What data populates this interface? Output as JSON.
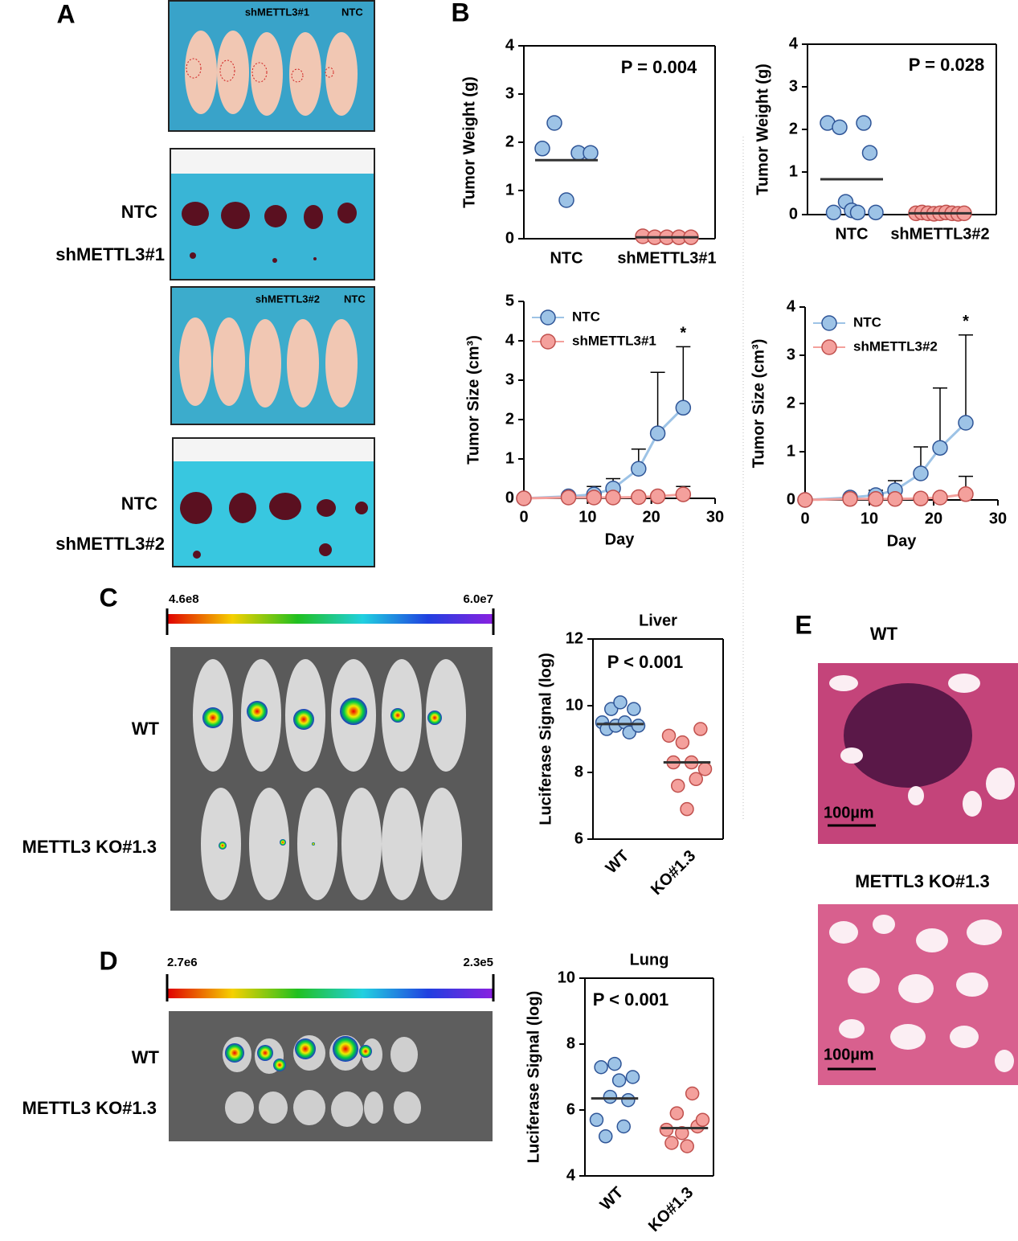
{
  "figure": {
    "panel_labels": [
      "A",
      "B",
      "C",
      "D",
      "E"
    ],
    "a": {
      "legend_1": [
        "shMETTL3#1",
        "NTC"
      ],
      "rows_1": [
        "NTC",
        "shMETTL3#1"
      ],
      "legend_2": [
        "shMETTL3#2",
        "NTC"
      ],
      "rows_2": [
        "NTC",
        "shMETTL3#2"
      ]
    },
    "c": {
      "scale": [
        "4.6e8",
        "6.0e7"
      ],
      "rows": [
        "WT",
        "METTL3 KO#1.3"
      ]
    },
    "d": {
      "scale": [
        "2.7e6",
        "2.3e5"
      ],
      "rows": [
        "WT",
        "METTL3 KO#1.3"
      ]
    },
    "e": {
      "titles": [
        "WT",
        "METTL3 KO#1.3"
      ],
      "scale_bars": [
        "100µm",
        "100µm"
      ]
    }
  },
  "chart_data": [
    {
      "type": "strip",
      "ylabel": "Tumor Weight (g)",
      "annotation": "P = 0.004",
      "categories": [
        "NTC",
        "shMETTL3#1"
      ],
      "colors": [
        "#9dc3e6",
        "#f4a09c"
      ],
      "points": [
        [
          1.87,
          2.4,
          0.8,
          1.78,
          1.78
        ],
        [
          0.05,
          0.03,
          0.03,
          0.03,
          0.03
        ]
      ],
      "means": [
        1.63,
        0.03
      ],
      "ylim": [
        0,
        4
      ],
      "yticks": [
        0,
        1,
        2,
        3,
        4
      ]
    },
    {
      "type": "strip",
      "ylabel": "Tumor Weight (g)",
      "annotation": "P = 0.028",
      "categories": [
        "NTC",
        "shMETTL3#2"
      ],
      "colors": [
        "#9dc3e6",
        "#f4a09c"
      ],
      "points": [
        [
          2.15,
          0.05,
          2.05,
          0.3,
          0.1,
          0.05,
          2.15,
          1.45,
          0.05
        ],
        [
          0.03,
          0.05,
          0.03,
          0.02,
          0.03,
          0.05,
          0.03,
          0.02,
          0.03
        ]
      ],
      "means": [
        0.83,
        0.03
      ],
      "ylim": [
        0,
        4
      ],
      "yticks": [
        0,
        1,
        2,
        3,
        4
      ]
    },
    {
      "type": "line",
      "ylabel": "Tumor Size (cm³)",
      "xlabel": "Day",
      "annotation": "*",
      "legend": "upper left",
      "x": [
        0,
        7,
        11,
        14,
        18,
        21,
        25
      ],
      "series": [
        {
          "name": "NTC",
          "color": "#9dc3e6",
          "values": [
            0,
            0.05,
            0.1,
            0.25,
            0.75,
            1.65,
            2.3
          ],
          "errors": [
            0,
            0.05,
            0.2,
            0.25,
            0.5,
            1.55,
            1.55
          ]
        },
        {
          "name": "shMETTL3#1",
          "color": "#f4a09c",
          "values": [
            0,
            0.02,
            0.02,
            0.02,
            0.03,
            0.05,
            0.1
          ],
          "errors": [
            0,
            0,
            0,
            0,
            0,
            0,
            0.2
          ]
        }
      ],
      "xlim": [
        0,
        30
      ],
      "xticks": [
        0,
        10,
        20,
        30
      ],
      "ylim": [
        0,
        5
      ],
      "yticks": [
        0,
        1,
        2,
        3,
        4,
        5
      ]
    },
    {
      "type": "line",
      "ylabel": "Tumor Size (cm³)",
      "xlabel": "Day",
      "annotation": "*",
      "legend": "upper left",
      "x": [
        0,
        7,
        11,
        14,
        18,
        21,
        25
      ],
      "series": [
        {
          "name": "NTC",
          "color": "#9dc3e6",
          "values": [
            0,
            0.05,
            0.1,
            0.2,
            0.55,
            1.08,
            1.6
          ],
          "errors": [
            0,
            0.03,
            0.1,
            0.2,
            0.55,
            1.24,
            1.82
          ]
        },
        {
          "name": "shMETTL3#2",
          "color": "#f4a09c",
          "values": [
            0,
            0.02,
            0.02,
            0.02,
            0.03,
            0.05,
            0.12
          ],
          "errors": [
            0,
            0,
            0,
            0,
            0,
            0,
            0.37
          ]
        }
      ],
      "xlim": [
        0,
        30
      ],
      "xticks": [
        0,
        10,
        20,
        30
      ],
      "ylim": [
        0,
        4
      ],
      "yticks": [
        0,
        1,
        2,
        3,
        4
      ]
    },
    {
      "type": "strip",
      "title": "Liver",
      "ylabel": "Luciferase Signal (log)",
      "annotation": "P < 0.001",
      "categories": [
        "WT",
        "KO#1.3"
      ],
      "colors": [
        "#9dc3e6",
        "#f4a09c"
      ],
      "points": [
        [
          9.5,
          9.3,
          9.9,
          9.4,
          10.1,
          9.5,
          9.2,
          9.9,
          9.4
        ],
        [
          9.1,
          8.3,
          7.6,
          8.9,
          6.9,
          8.3,
          7.8,
          9.3,
          8.1
        ]
      ],
      "means": [
        9.45,
        8.3
      ],
      "ylim": [
        6,
        12
      ],
      "yticks": [
        6,
        8,
        10,
        12
      ]
    },
    {
      "type": "strip",
      "title": "Lung",
      "ylabel": "Luciferase Signal (log)",
      "annotation": "P < 0.001",
      "categories": [
        "WT",
        "KO#1.3"
      ],
      "colors": [
        "#9dc3e6",
        "#f4a09c"
      ],
      "points": [
        [
          5.7,
          7.3,
          5.2,
          6.4,
          7.4,
          6.9,
          5.5,
          6.3,
          7.0
        ],
        [
          5.4,
          5.0,
          5.9,
          5.3,
          4.9,
          6.5,
          5.5,
          5.7
        ]
      ],
      "means": [
        6.35,
        5.45
      ],
      "ylim": [
        4,
        10
      ],
      "yticks": [
        4,
        6,
        8,
        10
      ]
    }
  ]
}
